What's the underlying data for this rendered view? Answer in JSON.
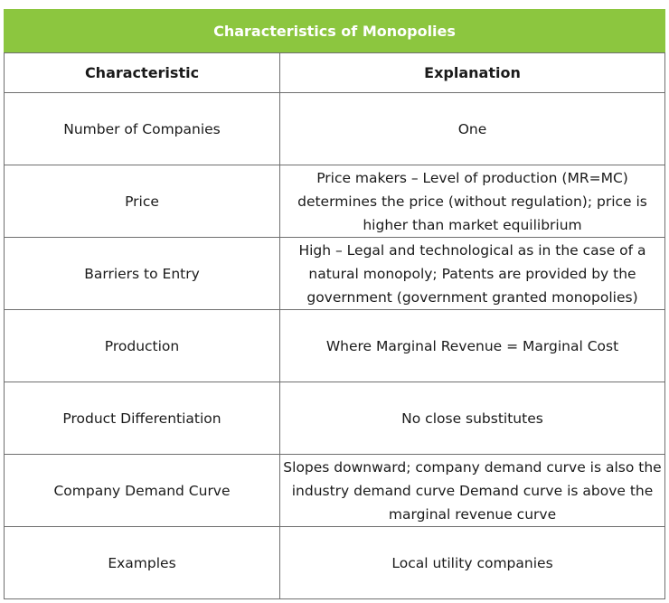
{
  "table": {
    "title": "Characteristics of Monopolies",
    "headers": [
      "Characteristic",
      "Explanation"
    ],
    "rows": [
      {
        "characteristic": "Number of Companies",
        "explanation": "One"
      },
      {
        "characteristic": "Price",
        "explanation": "Price makers – Level of production (MR=MC) determines the price (without regulation); price is higher than market equilibrium"
      },
      {
        "characteristic": "Barriers to Entry",
        "explanation": "High – Legal and technological as in the case of a natural monopoly; Patents are provided by the government (government granted monopolies)"
      },
      {
        "characteristic": "Production",
        "explanation": "Where Marginal Revenue = Marginal Cost"
      },
      {
        "characteristic": "Product Differentiation",
        "explanation": "No close substitutes"
      },
      {
        "characteristic": "Company Demand Curve",
        "explanation": "Slopes downward; company demand curve is also the industry demand curve Demand curve is above the marginal revenue curve"
      },
      {
        "characteristic": "Examples",
        "explanation": "Local utility companies"
      }
    ]
  },
  "colors": {
    "title_background": "#8cc63f",
    "title_text": "#ffffff",
    "border": "#6f6f6f"
  }
}
